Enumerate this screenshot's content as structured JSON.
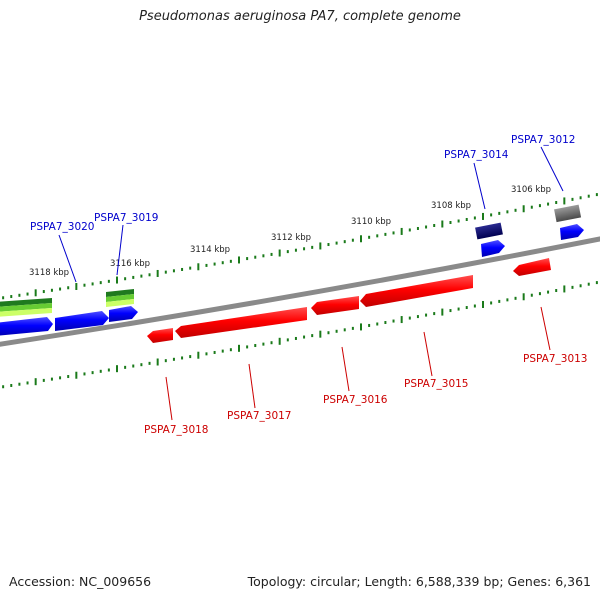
{
  "title": "Pseudomonas aeruginosa PA7, complete genome",
  "footer": {
    "accession": "Accession: NC_009656",
    "summary": "Topology: circular; Length: 6,588,339 bp; Genes: 6,361"
  },
  "scale_ticks": [
    "3106 kbp",
    "3108 kbp",
    "3110 kbp",
    "3112 kbp",
    "3114 kbp",
    "3116 kbp",
    "3118 kbp"
  ],
  "gene_labels": [
    {
      "name": "PSPA7_3012",
      "strand": "forward"
    },
    {
      "name": "PSPA7_3014",
      "strand": "forward"
    },
    {
      "name": "PSPA7_3019",
      "strand": "forward"
    },
    {
      "name": "PSPA7_3020",
      "strand": "forward"
    },
    {
      "name": "PSPA7_3013",
      "strand": "reverse"
    },
    {
      "name": "PSPA7_3015",
      "strand": "reverse"
    },
    {
      "name": "PSPA7_3016",
      "strand": "reverse"
    },
    {
      "name": "PSPA7_3017",
      "strand": "reverse"
    },
    {
      "name": "PSPA7_3018",
      "strand": "reverse"
    }
  ],
  "colors": {
    "backbone": "#8a8a8a",
    "forward_gene": "#0000ff",
    "reverse_gene": "#ff0000",
    "forward_label": "#0000cc",
    "reverse_label": "#cc0000",
    "tick": "#1a7a1a",
    "dark_navy": "#000066",
    "gray_feature": "#666666",
    "green_feature": "#2e8b22"
  }
}
